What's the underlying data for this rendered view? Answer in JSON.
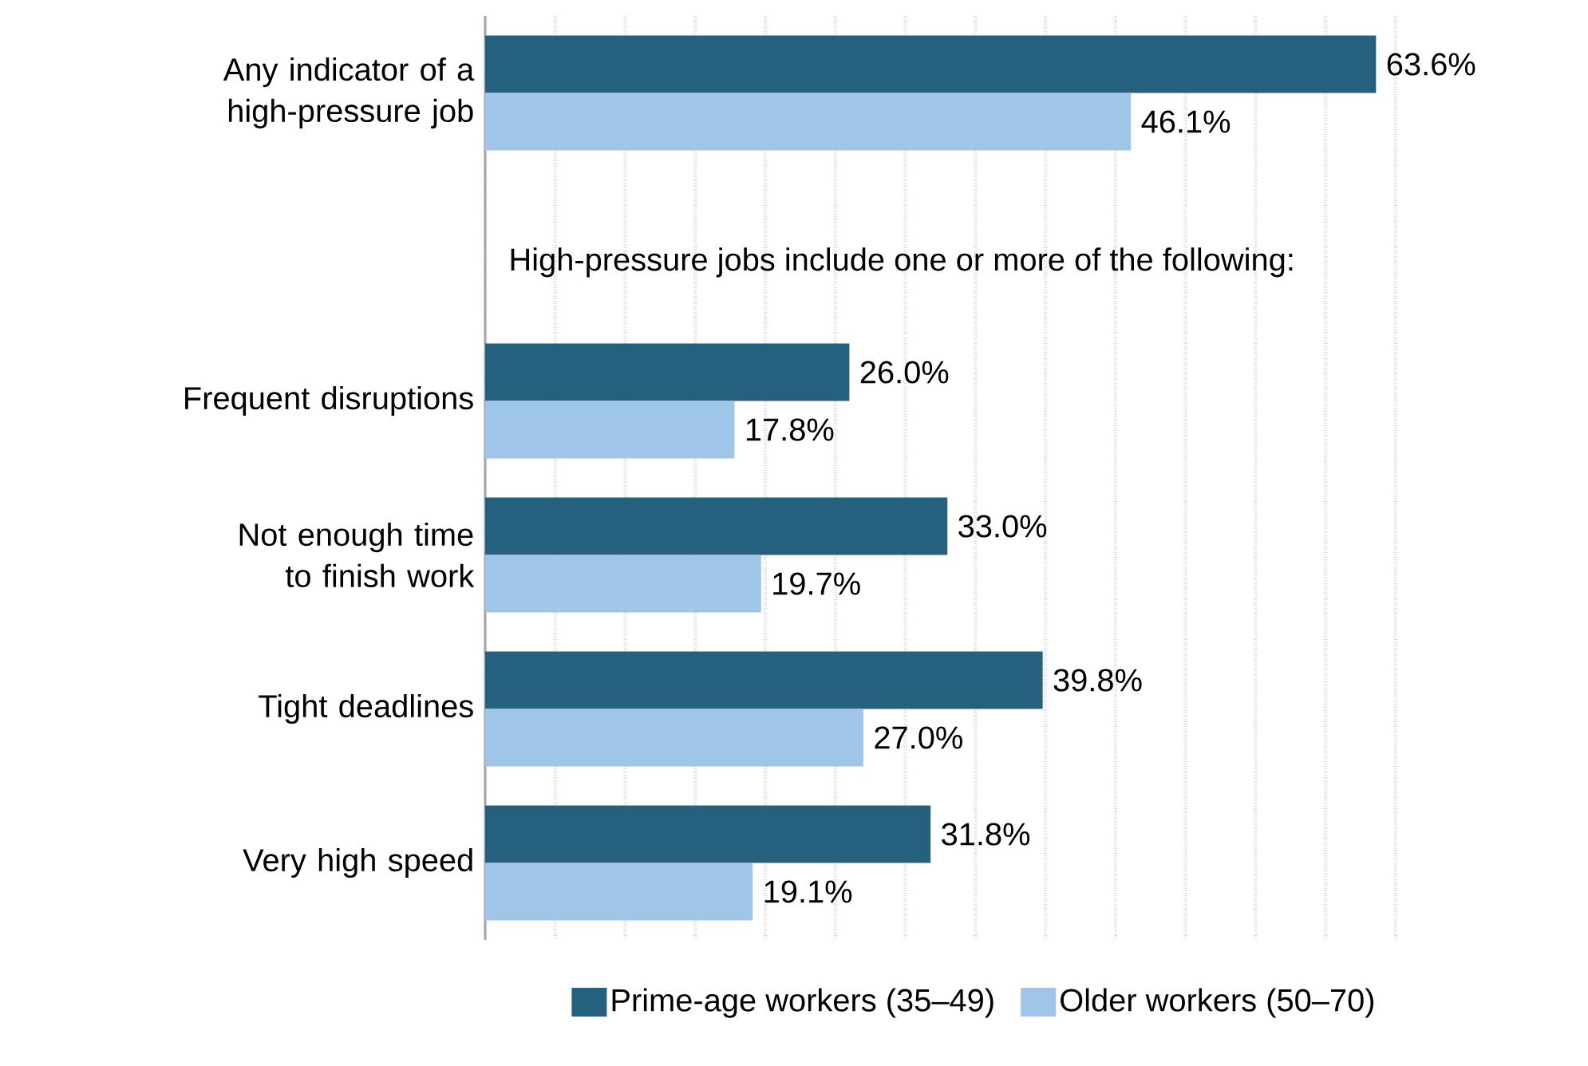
{
  "chart_data": {
    "type": "bar",
    "orientation": "horizontal",
    "categories": [
      "Any indicator of a high-pressure job",
      null,
      "Frequent disruptions",
      "Not enough time to finish work",
      "Tight deadlines",
      "Very high speed"
    ],
    "series": [
      {
        "name": "Prime-age workers (35–49)",
        "color": "#25617f",
        "values": [
          63.6,
          null,
          26.0,
          33.0,
          39.8,
          31.8
        ],
        "value_labels": [
          "63.6%",
          null,
          "26.0%",
          "33.0%",
          "39.8%",
          "31.8%"
        ]
      },
      {
        "name": "Older workers (50–70)",
        "color": "#9fc5e8",
        "values": [
          46.1,
          null,
          17.8,
          19.7,
          27.0,
          19.1
        ],
        "value_labels": [
          "46.1%",
          null,
          "17.8%",
          "19.7%",
          "27.0%",
          "19.1%"
        ]
      }
    ],
    "annotations": [
      "High-pressure jobs include one or more of the following:"
    ],
    "grid": "x",
    "legend": "bottom",
    "tick_labels": "y"
  }
}
